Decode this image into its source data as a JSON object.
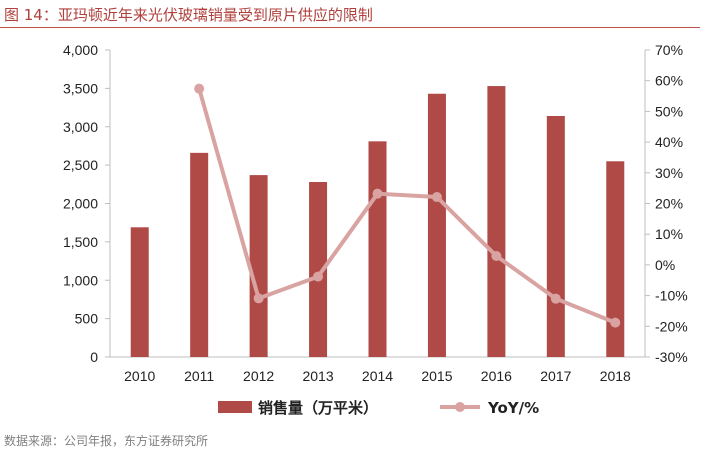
{
  "figure": {
    "title": "图 14：亚玛顿近年来光伏玻璃销量受到原片供应的限制",
    "source": "数据来源：公司年报，东方证券研究所"
  },
  "colors": {
    "bar": "#b04a47",
    "line": "#d9a3a1",
    "title": "#b0403c"
  },
  "chart_data": {
    "type": "bar",
    "categories": [
      "2010",
      "2011",
      "2012",
      "2013",
      "2014",
      "2015",
      "2016",
      "2017",
      "2018"
    ],
    "series": [
      {
        "name": "销售量（万平米）",
        "type": "bar",
        "axis": "left",
        "values": [
          1690,
          2660,
          2370,
          2280,
          2810,
          3430,
          3530,
          3140,
          2550
        ]
      },
      {
        "name": "YoY/%",
        "type": "line",
        "axis": "right",
        "values": [
          null,
          57.4,
          -10.9,
          -3.8,
          23.2,
          22.1,
          2.9,
          -11.0,
          -18.8
        ]
      }
    ],
    "y_left": {
      "min": 0,
      "max": 4000,
      "step": 500,
      "tick_labels": [
        "0",
        "500",
        "1,000",
        "1,500",
        "2,000",
        "2,500",
        "3,000",
        "3,500",
        "4,000"
      ]
    },
    "y_right": {
      "min": -30,
      "max": 70,
      "step": 10,
      "tick_labels": [
        "-30%",
        "-20%",
        "-10%",
        "0%",
        "10%",
        "20%",
        "30%",
        "40%",
        "50%",
        "60%",
        "70%"
      ]
    },
    "grid": false,
    "legend": {
      "position": "bottom",
      "items": [
        "销售量（万平米）",
        "YoY/%"
      ]
    }
  }
}
